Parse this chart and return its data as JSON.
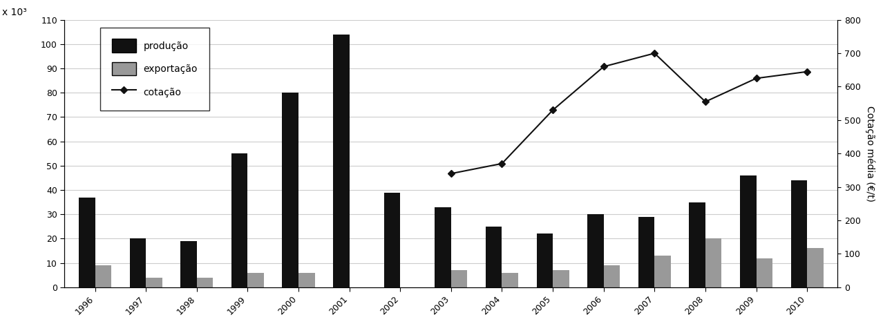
{
  "years": [
    1996,
    1997,
    1998,
    1999,
    2000,
    2001,
    2002,
    2003,
    2004,
    2005,
    2006,
    2007,
    2008,
    2009,
    2010
  ],
  "producao": [
    37,
    20,
    19,
    55,
    80,
    104,
    39,
    33,
    25,
    22,
    30,
    29,
    35,
    46,
    44
  ],
  "exportacao": [
    9,
    4,
    4,
    6,
    6,
    0,
    0,
    7,
    6,
    7,
    9,
    13,
    20,
    12,
    16
  ],
  "cotacao": [
    null,
    null,
    null,
    null,
    null,
    null,
    null,
    340,
    370,
    530,
    660,
    700,
    555,
    625,
    645
  ],
  "ylim_left": [
    0,
    110
  ],
  "ylim_right": [
    0,
    800
  ],
  "yticks_left": [
    0,
    10,
    20,
    30,
    40,
    50,
    60,
    70,
    80,
    90,
    100,
    110
  ],
  "yticks_right": [
    0,
    100,
    200,
    300,
    400,
    500,
    600,
    700,
    800
  ],
  "bar_color_producao": "#111111",
  "bar_color_exportacao": "#999999",
  "line_color": "#111111",
  "legend_labels": [
    "produção",
    "exportação",
    "cotação"
  ],
  "ylabel_left": "x 10³",
  "ylabel_right": "Cotação média (€/t)",
  "background_color": "#ffffff",
  "bar_width": 0.32,
  "figsize": [
    12.78,
    4.69
  ],
  "dpi": 100,
  "grid_color": "#cccccc",
  "tick_fontsize": 9,
  "legend_fontsize": 10
}
